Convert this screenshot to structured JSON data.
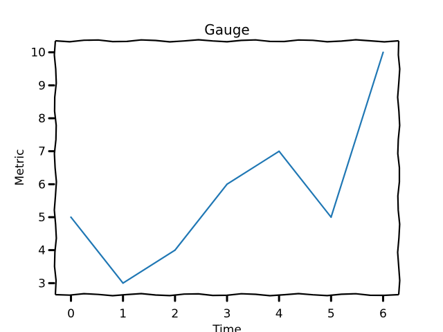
{
  "chart_data": {
    "type": "line",
    "title": "Gauge",
    "xlabel": "Time",
    "ylabel": "Metric",
    "x": [
      0,
      1,
      2,
      3,
      4,
      5,
      6
    ],
    "series": [
      {
        "values": [
          5,
          3,
          4,
          6,
          7,
          5,
          10
        ],
        "color": "#1f77b4"
      }
    ],
    "xticks": [
      "0",
      "1",
      "2",
      "3",
      "4",
      "5",
      "6"
    ],
    "yticks": [
      "3",
      "4",
      "5",
      "6",
      "7",
      "8",
      "9",
      "10"
    ],
    "xlim": [
      -0.3,
      6.3
    ],
    "ylim": [
      2.65,
      10.35
    ],
    "grid": false,
    "style": "hand-drawn"
  }
}
